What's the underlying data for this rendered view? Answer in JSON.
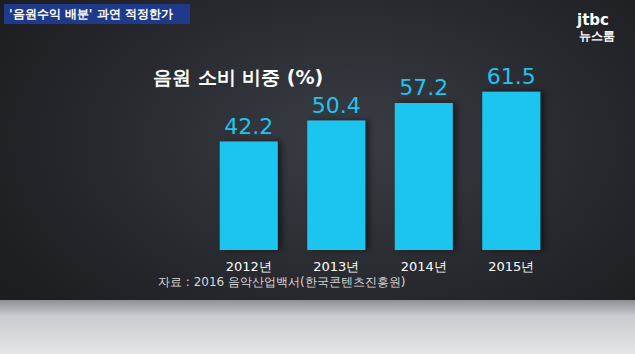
{
  "header": {
    "banner": "'음원수익 배분' 과연 적정한가",
    "channel": "jtbc",
    "program": "뉴스룸"
  },
  "chart_data": {
    "type": "bar",
    "title": "음원 소비 비중 (%)",
    "categories": [
      "2012년",
      "2013년",
      "2014년",
      "2015년"
    ],
    "values": [
      42.2,
      50.4,
      57.2,
      61.5
    ],
    "color": "#1fc4f0",
    "ylim": [
      0,
      70
    ],
    "grid": false,
    "data_labels": true,
    "tick_labels": "x",
    "annotations": [
      "자료 : 2016 음악산업백서(한국콘텐츠진흥원)"
    ]
  }
}
